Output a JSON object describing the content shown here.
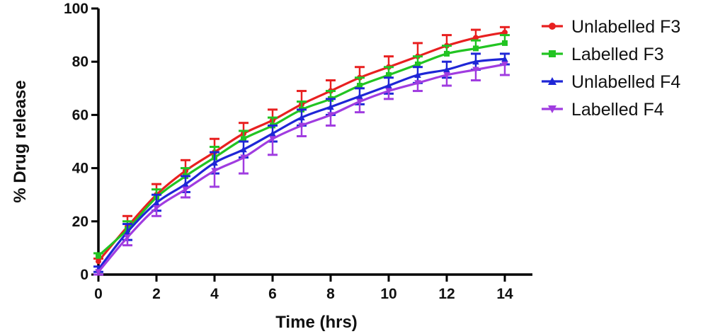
{
  "chart_data": {
    "type": "line",
    "title": "",
    "xlabel": "Time (hrs)",
    "ylabel": "% Drug release",
    "xlim": [
      0,
      14
    ],
    "ylim": [
      0,
      100
    ],
    "xticks": [
      0,
      2,
      4,
      6,
      8,
      10,
      12,
      14
    ],
    "yticks": [
      0,
      20,
      40,
      60,
      80,
      100
    ],
    "grid": false,
    "legend_position": "right",
    "error_bars": true,
    "x": [
      0,
      1,
      2,
      3,
      4,
      5,
      6,
      7,
      8,
      9,
      10,
      11,
      12,
      13,
      14
    ],
    "series": [
      {
        "name": "Unlabelled F3",
        "color": "#e82020",
        "marker": "circle",
        "values": [
          5,
          18,
          30,
          39,
          46,
          53,
          58,
          64,
          69,
          74,
          78,
          82,
          86,
          89,
          91
        ],
        "errors": [
          1,
          4,
          4,
          4,
          5,
          4,
          4,
          5,
          4,
          4,
          4,
          5,
          4,
          3,
          2
        ]
      },
      {
        "name": "Labelled F3",
        "color": "#22c422",
        "marker": "square",
        "values": [
          7,
          17,
          29,
          37,
          44,
          51,
          56,
          62,
          66,
          71,
          75,
          79,
          83,
          85,
          87
        ],
        "errors": [
          1,
          3,
          3,
          3,
          4,
          3,
          3,
          3,
          3,
          3,
          3,
          3,
          3,
          3,
          3
        ]
      },
      {
        "name": "Unlabelled F4",
        "color": "#1f26d6",
        "marker": "triangle-up",
        "values": [
          2,
          16,
          27,
          34,
          42,
          47,
          53,
          59,
          63,
          67,
          71,
          75,
          77,
          80,
          81
        ],
        "errors": [
          1,
          3,
          3,
          3,
          4,
          3,
          3,
          3,
          3,
          3,
          3,
          3,
          3,
          3,
          2
        ]
      },
      {
        "name": "Labelled F4",
        "color": "#a03ce0",
        "marker": "triangle-down",
        "values": [
          1,
          14,
          25,
          32,
          39,
          44,
          51,
          56,
          60,
          65,
          69,
          72,
          75,
          77,
          79
        ],
        "errors": [
          1,
          3,
          3,
          3,
          6,
          6,
          6,
          4,
          4,
          4,
          3,
          3,
          4,
          4,
          4
        ]
      }
    ]
  }
}
